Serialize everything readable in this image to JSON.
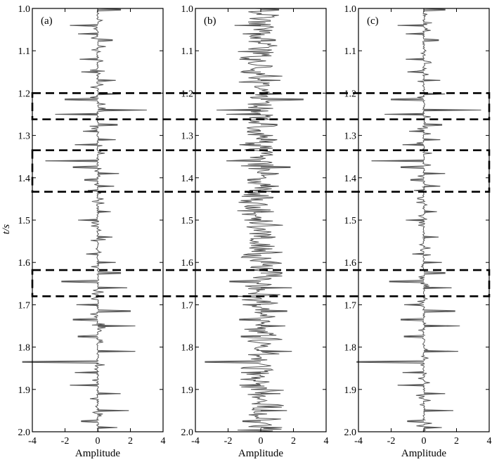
{
  "chart_data": [
    {
      "type": "line",
      "panel": "(a)",
      "ylabel": "t/s",
      "xlabel": "Amplitude",
      "xlim": [
        -4,
        4
      ],
      "ylim": [
        1.0,
        2.0
      ],
      "y_inverted": true,
      "xticks": [
        -4,
        -2,
        0,
        2,
        4
      ],
      "yticks": [
        1.0,
        1.1,
        1.2,
        1.3,
        1.4,
        1.5,
        1.6,
        1.7,
        1.8,
        1.9,
        2.0
      ],
      "style": "sparse-spikes",
      "series": [
        {
          "t": [
            1.003,
            1.04,
            1.06,
            1.075,
            1.12,
            1.15,
            1.17,
            1.202,
            1.215,
            1.24,
            1.25,
            1.275,
            1.29,
            1.31,
            1.322,
            1.36,
            1.375,
            1.39,
            1.405,
            1.42,
            1.43,
            1.48,
            1.5,
            1.54,
            1.58,
            1.6,
            1.625,
            1.645,
            1.66,
            1.7,
            1.715,
            1.735,
            1.75,
            1.775,
            1.81,
            1.835,
            1.86,
            1.89,
            1.91,
            1.95,
            1.975,
            1.99
          ],
          "amplitude": [
            1.4,
            -1.7,
            -1.2,
            0.9,
            -1.1,
            -1.0,
            1.1,
            1.4,
            -2.0,
            3.0,
            -2.6,
            1.2,
            -0.9,
            1.1,
            -1.4,
            -3.2,
            -1.5,
            1.3,
            -0.8,
            1.0,
            -0.6,
            0.8,
            -1.2,
            0.9,
            -0.7,
            1.1,
            1.4,
            -2.2,
            1.8,
            -1.3,
            2.0,
            -1.5,
            2.3,
            -1.2,
            2.3,
            -4.6,
            -1.4,
            -1.7,
            1.4,
            1.9,
            -1.0,
            1.2
          ]
        }
      ]
    },
    {
      "type": "line",
      "panel": "(b)",
      "xlabel": "Amplitude",
      "xlim": [
        -4,
        4
      ],
      "ylim": [
        1.0,
        2.0
      ],
      "y_inverted": true,
      "xticks": [
        -4,
        -2,
        0,
        2,
        4
      ],
      "yticks": [
        1.0,
        1.1,
        1.2,
        1.3,
        1.4,
        1.5,
        1.6,
        1.7,
        1.8,
        1.9,
        2.0
      ],
      "style": "dense-wiggle",
      "series": [
        {
          "t": [
            1.003,
            1.04,
            1.06,
            1.075,
            1.12,
            1.15,
            1.17,
            1.202,
            1.215,
            1.24,
            1.25,
            1.275,
            1.29,
            1.31,
            1.322,
            1.36,
            1.375,
            1.39,
            1.405,
            1.42,
            1.43,
            1.48,
            1.5,
            1.54,
            1.58,
            1.6,
            1.625,
            1.645,
            1.66,
            1.7,
            1.715,
            1.735,
            1.75,
            1.775,
            1.81,
            1.835,
            1.86,
            1.89,
            1.91,
            1.95,
            1.975,
            1.99
          ],
          "amplitude": [
            1.1,
            -1.6,
            -1.1,
            0.9,
            -1.3,
            -1.2,
            1.2,
            1.3,
            2.6,
            -2.7,
            -2.1,
            1.0,
            -0.8,
            1.0,
            -1.3,
            -2.1,
            1.8,
            1.1,
            -0.8,
            1.1,
            -0.7,
            0.8,
            -1.0,
            0.9,
            -0.8,
            1.0,
            1.3,
            -1.9,
            1.9,
            -1.1,
            1.6,
            -1.3,
            1.5,
            -1.2,
            1.9,
            -3.4,
            -1.2,
            -1.3,
            1.2,
            1.6,
            -1.1,
            1.3
          ]
        }
      ]
    },
    {
      "type": "line",
      "panel": "(c)",
      "xlabel": "Amplitude",
      "xlim": [
        -4,
        4
      ],
      "ylim": [
        1.0,
        2.0
      ],
      "y_inverted": true,
      "xticks": [
        -4,
        -2,
        0,
        2,
        4
      ],
      "yticks": [
        1.0,
        1.1,
        1.2,
        1.3,
        1.4,
        1.5,
        1.6,
        1.7,
        1.8,
        1.9,
        2.0
      ],
      "style": "sparse-spikes",
      "series": [
        {
          "t": [
            1.003,
            1.04,
            1.06,
            1.075,
            1.12,
            1.15,
            1.17,
            1.202,
            1.215,
            1.24,
            1.25,
            1.275,
            1.29,
            1.31,
            1.322,
            1.36,
            1.375,
            1.39,
            1.405,
            1.42,
            1.43,
            1.48,
            1.5,
            1.54,
            1.58,
            1.6,
            1.625,
            1.645,
            1.66,
            1.7,
            1.715,
            1.735,
            1.75,
            1.775,
            1.81,
            1.835,
            1.86,
            1.89,
            1.91,
            1.95,
            1.975,
            1.99
          ],
          "amplitude": [
            1.3,
            -1.6,
            -1.1,
            0.9,
            -1.1,
            -1.0,
            1.0,
            1.3,
            -2.0,
            3.5,
            -2.4,
            1.1,
            -0.9,
            1.0,
            -1.3,
            -3.2,
            -1.4,
            1.3,
            -0.8,
            1.0,
            -0.6,
            0.8,
            -1.1,
            0.9,
            -0.7,
            1.1,
            1.3,
            -2.1,
            1.7,
            -1.2,
            1.9,
            -1.4,
            2.2,
            -1.2,
            2.1,
            -4.1,
            -1.3,
            -1.6,
            1.3,
            1.8,
            -1.0,
            1.1
          ]
        }
      ]
    }
  ],
  "highlight_windows": [
    {
      "t_start": 1.2,
      "t_end": 1.262
    },
    {
      "t_start": 1.335,
      "t_end": 1.433
    },
    {
      "t_start": 1.618,
      "t_end": 1.68
    }
  ],
  "colors": {
    "trace": "#555555",
    "axes": "#000000",
    "dashes": "#000000"
  }
}
